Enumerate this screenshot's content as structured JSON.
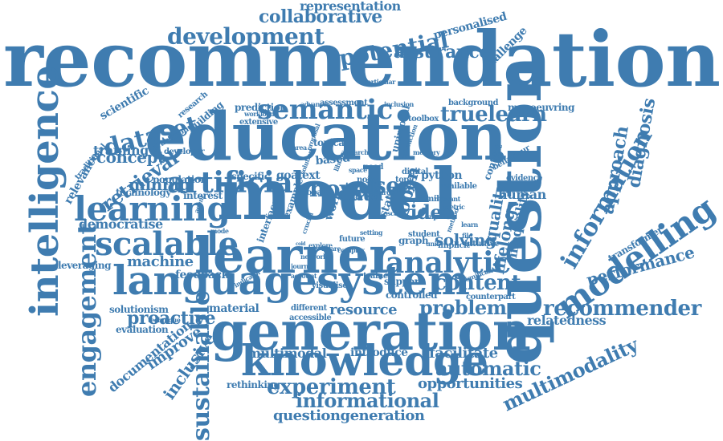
{
  "colors": {
    "primary": "#3f7cb0",
    "background": "#ffffff"
  },
  "words": [
    "recommendation",
    "education",
    "model",
    "question",
    "generation",
    "learner",
    "languagesystem",
    "modelling",
    "knowledge",
    "intelligence",
    "engagement",
    "learning",
    "scalable",
    "artificial",
    "semantic",
    "information",
    "development",
    "potential",
    "collaborative",
    "representation",
    "analytic",
    "dataset",
    "truelearn",
    "novel",
    "user",
    "recommender",
    "performance",
    "content",
    "problem",
    "experiment",
    "informational",
    "questiongeneration",
    "multimodality",
    "sustainable",
    "automatic",
    "opportunities",
    "machine",
    "proactive",
    "retrieval",
    "mining",
    "concept",
    "training",
    "scientific",
    "relevance",
    "leveraging",
    "feedback",
    "solutionism",
    "evaluation",
    "documentation",
    "improve",
    "inclusive",
    "democratise",
    "resource",
    "material",
    "multimodal",
    "facilitate",
    "introduce",
    "rethinking",
    "diagnosis",
    "approach",
    "inequality",
    "lifelong",
    "quality",
    "video",
    "solving",
    "relatedness",
    "transformer",
    "assurance",
    "personalised",
    "challenge",
    "data",
    "open",
    "human",
    "graph",
    "implicit",
    "intuitive",
    "interest",
    "technology",
    "population",
    "counterpart",
    "controlled",
    "trained",
    "support",
    "different",
    "accessible",
    "visualise",
    "indicator",
    "technique",
    "journey",
    "text",
    "goal",
    "based",
    "topical",
    "unimodal",
    "prediction",
    "research",
    "building",
    "extensive",
    "workload",
    "advance",
    "assessment",
    "inclusion",
    "background",
    "manoeuvring",
    "toolbox",
    "particular",
    "developer",
    "practitioner",
    "traditional",
    "python",
    "digital",
    "available",
    "context",
    "evidence",
    "behaviour",
    "specific",
    "global",
    "example",
    "interface",
    "work",
    "state",
    "tool",
    "more",
    "need",
    "noisy",
    "topic",
    "query",
    "family",
    "student",
    "future",
    "complex",
    "explore",
    "crucial",
    "superior",
    "relevant",
    "cold",
    "scale",
    "large",
    "file",
    "method",
    "account",
    "significant",
    "agent",
    "mode",
    "space",
    "solution",
    "proposal",
    "interaction",
    "unit",
    "network",
    "memory",
    "aware",
    "library",
    "space",
    "area",
    "search",
    "metric",
    "learn",
    "setting"
  ]
}
